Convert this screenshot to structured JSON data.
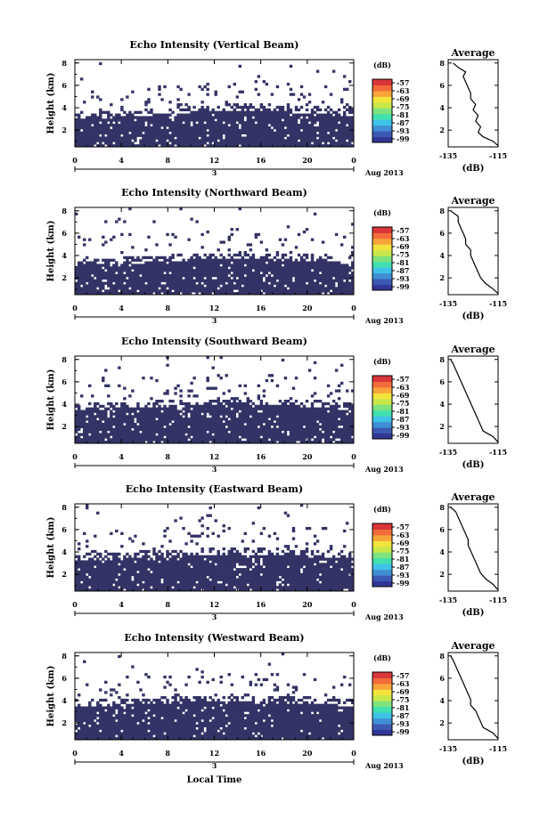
{
  "figure": {
    "xlabel": "Local Time",
    "date_label": "Aug 2013",
    "colorbar_unit": "(dB)",
    "colorbar_ticks": [
      "-57",
      "-63",
      "-69",
      "-75",
      "-81",
      "-87",
      "-93",
      "-99"
    ],
    "colormap": [
      "#313695",
      "#3b59b0",
      "#3f8fd2",
      "#3fc2e8",
      "#40e0b0",
      "#7ee27e",
      "#c8e84a",
      "#f2e43c",
      "#f7a53a",
      "#f36b3a",
      "#d9363a"
    ],
    "fill_color": "#333366",
    "average_title": "Average",
    "average_xlabel": "(dB)",
    "date_tick": "3"
  },
  "chart_data": [
    {
      "type": "heatmap",
      "title": "Echo Intensity (Vertical Beam)",
      "ylabel": "Height (km)",
      "x_ticks": [
        "0",
        "4",
        "8",
        "12",
        "16",
        "20",
        "0"
      ],
      "xlim": [
        0,
        24
      ],
      "y_ticks": [
        "2",
        "4",
        "6",
        "8"
      ],
      "ylim": [
        0.5,
        8.3
      ],
      "echo_top_km": [
        3.1,
        3.1,
        3.2,
        3.3,
        3.3,
        3.4,
        3.4,
        3.5,
        3.6,
        3.6,
        3.7,
        3.8,
        3.8,
        3.9,
        3.9,
        3.9,
        3.9,
        3.8,
        3.8,
        3.7,
        3.6,
        3.6,
        3.5,
        3.5,
        3.5
      ],
      "average_profile": {
        "xlim": [
          -135,
          -115
        ],
        "x_ticks": [
          "-135",
          "-115"
        ],
        "y_ticks": [
          "2",
          "4",
          "6",
          "8"
        ],
        "ylim": [
          0.5,
          8.3
        ],
        "points": [
          [
            -114,
            0.6
          ],
          [
            -117,
            1.0
          ],
          [
            -121,
            1.4
          ],
          [
            -123,
            1.8
          ],
          [
            -122,
            2.3
          ],
          [
            -124,
            2.8
          ],
          [
            -123,
            3.3
          ],
          [
            -125,
            3.8
          ],
          [
            -124,
            4.3
          ],
          [
            -126,
            4.8
          ],
          [
            -126,
            5.3
          ],
          [
            -127,
            5.8
          ],
          [
            -128,
            6.3
          ],
          [
            -129,
            6.8
          ],
          [
            -128,
            7.2
          ],
          [
            -131,
            7.6
          ],
          [
            -133,
            8.0
          ]
        ]
      }
    },
    {
      "type": "heatmap",
      "title": "Echo Intensity (Northward Beam)",
      "ylabel": "Height (km)",
      "x_ticks": [
        "0",
        "4",
        "8",
        "12",
        "16",
        "20",
        "0"
      ],
      "xlim": [
        0,
        24
      ],
      "y_ticks": [
        "2",
        "4",
        "6",
        "8"
      ],
      "ylim": [
        0.5,
        8.3
      ],
      "echo_top_km": [
        3.3,
        3.3,
        3.3,
        3.4,
        3.4,
        3.5,
        3.5,
        3.6,
        3.6,
        3.7,
        3.7,
        3.8,
        3.8,
        3.8,
        3.9,
        3.9,
        3.8,
        3.8,
        3.8,
        3.7,
        3.7,
        3.6,
        3.5,
        3.5,
        3.5
      ],
      "average_profile": {
        "xlim": [
          -135,
          -115
        ],
        "x_ticks": [
          "-135",
          "-115"
        ],
        "y_ticks": [
          "2",
          "4",
          "6",
          "8"
        ],
        "ylim": [
          0.5,
          8.3
        ],
        "points": [
          [
            -114,
            0.6
          ],
          [
            -117,
            1.0
          ],
          [
            -120,
            1.5
          ],
          [
            -122,
            2.0
          ],
          [
            -123,
            2.5
          ],
          [
            -124,
            3.0
          ],
          [
            -125,
            3.5
          ],
          [
            -126,
            4.0
          ],
          [
            -126,
            4.5
          ],
          [
            -128,
            5.0
          ],
          [
            -128,
            5.5
          ],
          [
            -129,
            6.0
          ],
          [
            -130,
            6.5
          ],
          [
            -131,
            7.0
          ],
          [
            -131,
            7.5
          ],
          [
            -134,
            8.0
          ]
        ]
      }
    },
    {
      "type": "heatmap",
      "title": "Echo Intensity (Southward Beam)",
      "ylabel": "Height (km)",
      "x_ticks": [
        "0",
        "4",
        "8",
        "12",
        "16",
        "20",
        "0"
      ],
      "xlim": [
        0,
        24
      ],
      "y_ticks": [
        "2",
        "4",
        "6",
        "8"
      ],
      "ylim": [
        0.5,
        8.3
      ],
      "echo_top_km": [
        3.6,
        3.7,
        3.7,
        3.7,
        3.8,
        3.8,
        3.8,
        3.9,
        3.9,
        3.9,
        4.0,
        4.1,
        4.1,
        4.2,
        4.2,
        4.2,
        4.1,
        4.1,
        4.0,
        4.0,
        3.9,
        3.9,
        3.8,
        3.7,
        3.7
      ],
      "average_profile": {
        "xlim": [
          -135,
          -115
        ],
        "x_ticks": [
          "-135",
          "-115"
        ],
        "y_ticks": [
          "2",
          "4",
          "6",
          "8"
        ],
        "ylim": [
          0.5,
          8.3
        ],
        "points": [
          [
            -114,
            0.6
          ],
          [
            -117,
            1.1
          ],
          [
            -121,
            1.6
          ],
          [
            -122,
            2.1
          ],
          [
            -123,
            2.6
          ],
          [
            -124,
            3.1
          ],
          [
            -125,
            3.6
          ],
          [
            -126,
            4.1
          ],
          [
            -127,
            4.6
          ],
          [
            -128,
            5.1
          ],
          [
            -129,
            5.6
          ],
          [
            -130,
            6.1
          ],
          [
            -131,
            6.6
          ],
          [
            -132,
            7.1
          ],
          [
            -133,
            7.6
          ],
          [
            -134,
            8.0
          ]
        ]
      }
    },
    {
      "type": "heatmap",
      "title": "Echo Intensity (Eastward Beam)",
      "ylabel": "Height (km)",
      "x_ticks": [
        "0",
        "4",
        "8",
        "12",
        "16",
        "20",
        "0"
      ],
      "xlim": [
        0,
        24
      ],
      "y_ticks": [
        "2",
        "4",
        "6",
        "8"
      ],
      "ylim": [
        0.5,
        8.3
      ],
      "echo_top_km": [
        3.4,
        3.4,
        3.5,
        3.5,
        3.6,
        3.6,
        3.7,
        3.7,
        3.7,
        3.8,
        3.8,
        3.9,
        3.9,
        3.9,
        4.0,
        3.9,
        3.9,
        3.9,
        3.8,
        3.8,
        3.7,
        3.7,
        3.6,
        3.6,
        3.6
      ],
      "average_profile": {
        "xlim": [
          -135,
          -115
        ],
        "x_ticks": [
          "-135",
          "-115"
        ],
        "y_ticks": [
          "2",
          "4",
          "6",
          "8"
        ],
        "ylim": [
          0.5,
          8.3
        ],
        "points": [
          [
            -114,
            0.6
          ],
          [
            -117,
            1.1
          ],
          [
            -120,
            1.6
          ],
          [
            -122,
            2.1
          ],
          [
            -123,
            2.6
          ],
          [
            -124,
            3.1
          ],
          [
            -125,
            3.6
          ],
          [
            -126,
            4.1
          ],
          [
            -127,
            4.6
          ],
          [
            -127,
            5.1
          ],
          [
            -128,
            5.6
          ],
          [
            -129,
            6.1
          ],
          [
            -130,
            6.6
          ],
          [
            -131,
            7.1
          ],
          [
            -132,
            7.6
          ],
          [
            -134,
            8.0
          ]
        ]
      }
    },
    {
      "type": "heatmap",
      "title": "Echo Intensity (Westward Beam)",
      "ylabel": "Height (km)",
      "x_ticks": [
        "0",
        "4",
        "8",
        "12",
        "16",
        "20",
        "0"
      ],
      "xlim": [
        0,
        24
      ],
      "y_ticks": [
        "2",
        "4",
        "6",
        "8"
      ],
      "ylim": [
        0.5,
        8.3
      ],
      "echo_top_km": [
        3.6,
        3.6,
        3.7,
        3.7,
        3.8,
        3.8,
        3.8,
        3.9,
        3.9,
        4.0,
        4.0,
        4.1,
        4.1,
        4.1,
        4.1,
        4.1,
        4.0,
        4.0,
        4.0,
        3.9,
        3.9,
        3.8,
        3.8,
        3.7,
        3.7
      ],
      "average_profile": {
        "xlim": [
          -135,
          -115
        ],
        "x_ticks": [
          "-135",
          "-115"
        ],
        "y_ticks": [
          "2",
          "4",
          "6",
          "8"
        ],
        "ylim": [
          0.5,
          8.3
        ],
        "points": [
          [
            -114,
            0.6
          ],
          [
            -117,
            1.1
          ],
          [
            -121,
            1.6
          ],
          [
            -122,
            2.1
          ],
          [
            -123,
            2.6
          ],
          [
            -124,
            3.1
          ],
          [
            -126,
            3.6
          ],
          [
            -126,
            4.1
          ],
          [
            -127,
            4.6
          ],
          [
            -128,
            5.1
          ],
          [
            -129,
            5.6
          ],
          [
            -130,
            6.1
          ],
          [
            -131,
            6.6
          ],
          [
            -132,
            7.1
          ],
          [
            -133,
            7.6
          ],
          [
            -134,
            8.0
          ]
        ]
      }
    }
  ]
}
